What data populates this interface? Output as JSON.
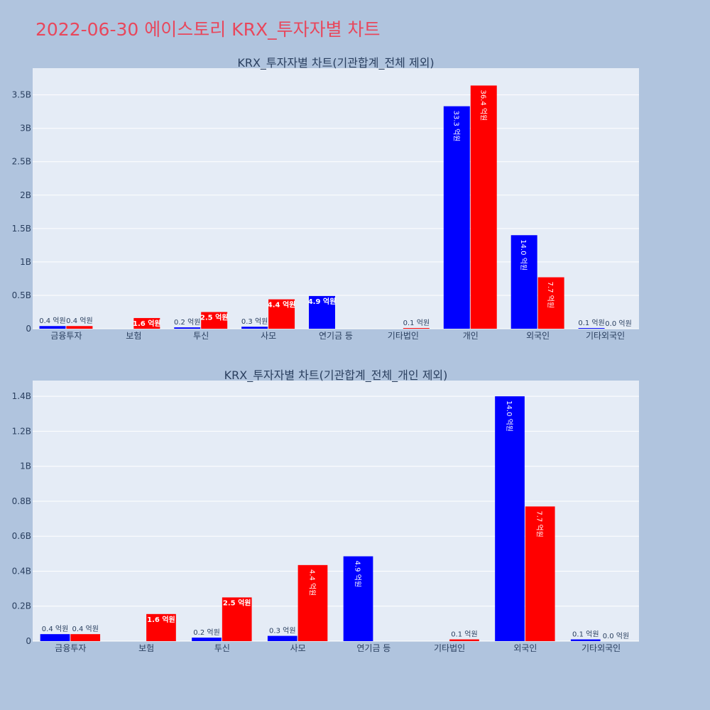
{
  "title": "2022-06-30 에이스토리 KRX_투자자별 차트",
  "colors": {
    "buy": "#0000ff",
    "sell": "#ff0000",
    "plot_bg": "#e5ecf6",
    "page_bg": "#b0c4de",
    "title": "#e8475c"
  },
  "chart_data": [
    {
      "type": "bar",
      "title": "KRX_투자자별 차트(기관합계_전체 제외)",
      "categories": [
        "금융투자",
        "보험",
        "투신",
        "사모",
        "연기금 등",
        "기타법인",
        "개인",
        "외국인",
        "기타외국인"
      ],
      "ylim": [
        0,
        3.9
      ],
      "yticks": [
        0,
        0.5,
        1,
        1.5,
        2,
        2.5,
        3,
        3.5
      ],
      "ytick_labels": [
        "0",
        "0.5B",
        "1B",
        "1.5B",
        "2B",
        "2.5B",
        "3B",
        "3.5B"
      ],
      "grid": true,
      "series": [
        {
          "color": "#0000ff",
          "values": [
            0.04,
            0,
            0.02,
            0.03,
            0.49,
            0,
            3.33,
            1.4,
            0.01
          ],
          "labels": [
            "0.4 억원",
            "",
            "0.2 억원",
            "0.3 억원",
            "4.9 억원",
            "",
            "33.3 억원",
            "14.0 억원",
            "0.1 억원"
          ]
        },
        {
          "color": "#ff0000",
          "values": [
            0.04,
            0.16,
            0.25,
            0.44,
            0,
            0.01,
            3.64,
            0.77,
            0.0
          ],
          "labels": [
            "0.4 억원",
            "1.6 억원",
            "2.5 억원",
            "4.4 억원",
            "",
            "0.1 억원",
            "36.4 억원",
            "7.7 억원",
            "0.0 억원"
          ]
        }
      ]
    },
    {
      "type": "bar",
      "title": "KRX_투자자별 차트(기관합계_전체_개인 제외)",
      "categories": [
        "금융투자",
        "보험",
        "투신",
        "사모",
        "연기금 등",
        "기타법인",
        "외국인",
        "기타외국인"
      ],
      "ylim": [
        0,
        1.49
      ],
      "yticks": [
        0,
        0.2,
        0.4,
        0.6,
        0.8,
        1,
        1.2,
        1.4
      ],
      "ytick_labels": [
        "0",
        "0.2B",
        "0.4B",
        "0.6B",
        "0.8B",
        "1B",
        "1.2B",
        "1.4B"
      ],
      "grid": true,
      "series": [
        {
          "color": "#0000ff",
          "values": [
            0.04,
            0,
            0.02,
            0.03,
            0.485,
            0,
            1.4,
            0.01
          ],
          "labels": [
            "0.4 억원",
            "",
            "0.2 억원",
            "0.3 억원",
            "4.9 억원",
            "",
            "14.0 억원",
            "0.1 억원"
          ]
        },
        {
          "color": "#ff0000",
          "values": [
            0.04,
            0.155,
            0.25,
            0.435,
            0,
            0.01,
            0.77,
            0.0
          ],
          "labels": [
            "0.4 억원",
            "1.6 억원",
            "2.5 억원",
            "4.4 억원",
            "",
            "0.1 억원",
            "7.7 억원",
            "0.0 억원"
          ]
        }
      ]
    }
  ]
}
